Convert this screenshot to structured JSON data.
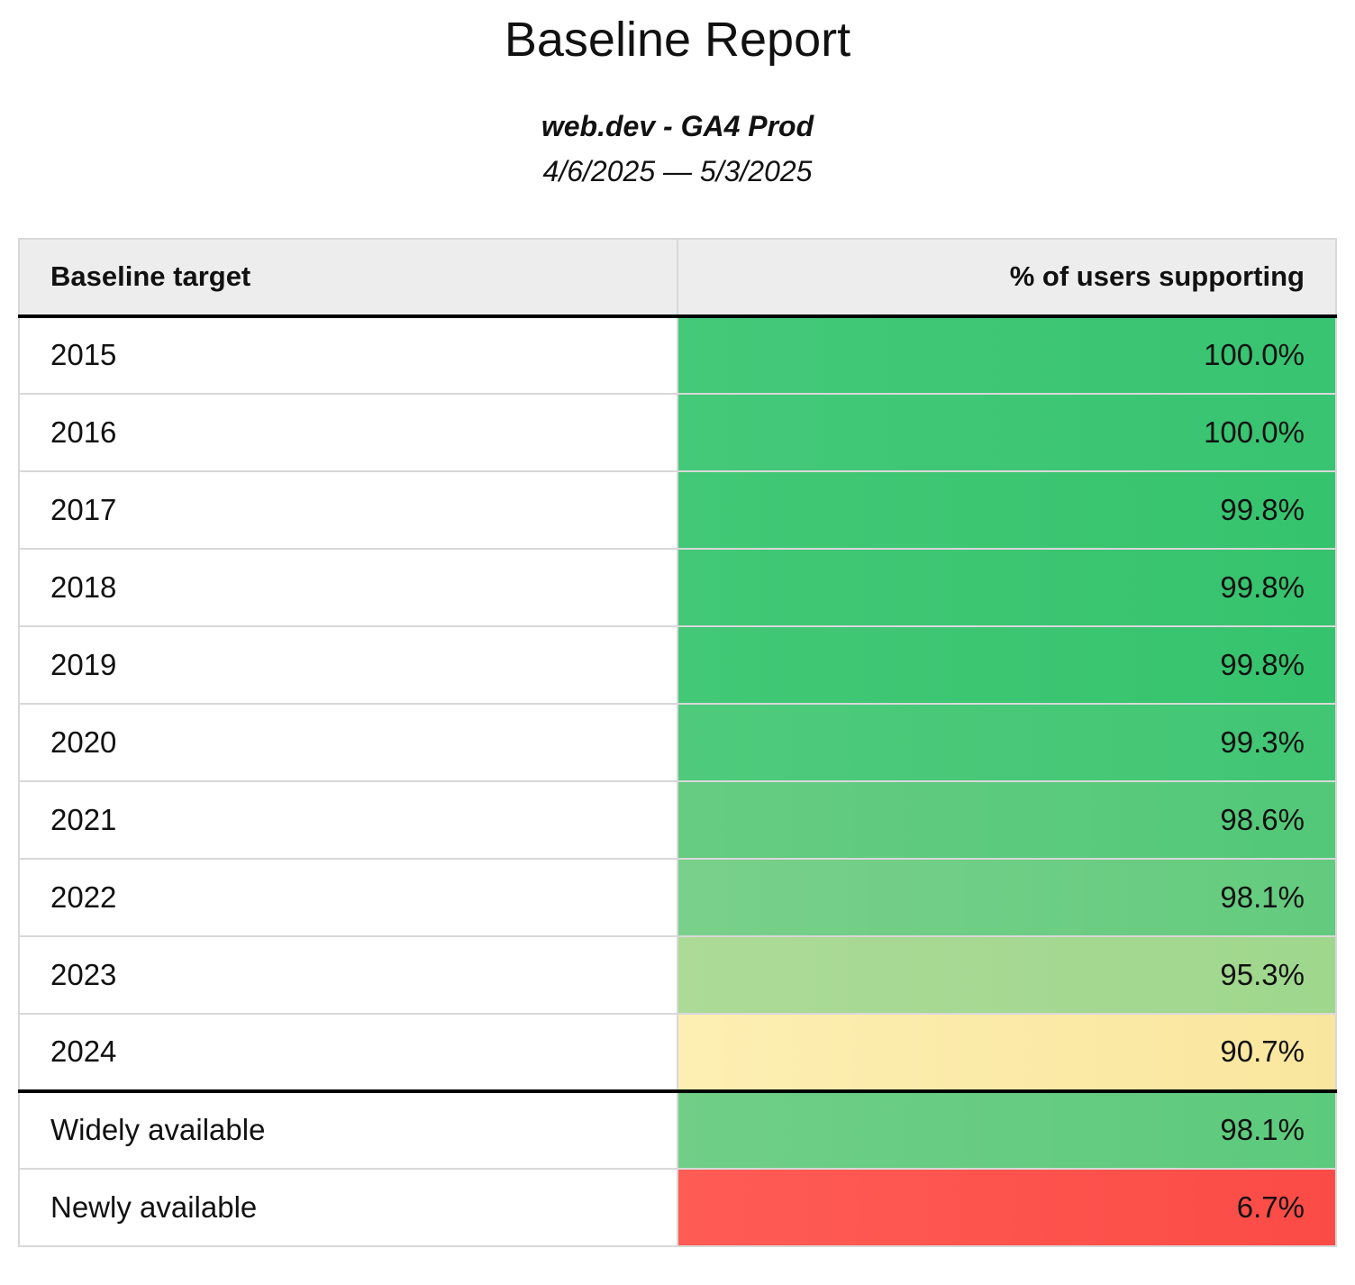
{
  "report": {
    "title": "Baseline Report",
    "subtitle": "web.dev - GA4 Prod",
    "date_range": "4/6/2025 — 5/3/2025"
  },
  "table": {
    "columns": [
      {
        "label": "Baseline target"
      },
      {
        "label": "% of users supporting"
      }
    ],
    "rows": [
      {
        "label": "2015",
        "value": "100.0%",
        "cell_color_left": "#44c979",
        "cell_color": "#38c471",
        "thick_border_below": false
      },
      {
        "label": "2016",
        "value": "100.0%",
        "cell_color_left": "#44c979",
        "cell_color": "#38c471",
        "thick_border_below": false
      },
      {
        "label": "2017",
        "value": "99.8%",
        "cell_color_left": "#42c876",
        "cell_color": "#36c36e",
        "thick_border_below": false
      },
      {
        "label": "2018",
        "value": "99.8%",
        "cell_color_left": "#42c876",
        "cell_color": "#36c36e",
        "thick_border_below": false
      },
      {
        "label": "2019",
        "value": "99.8%",
        "cell_color_left": "#42c876",
        "cell_color": "#36c36e",
        "thick_border_below": false
      },
      {
        "label": "2020",
        "value": "99.3%",
        "cell_color_left": "#4fca7c",
        "cell_color": "#41c674",
        "thick_border_below": false
      },
      {
        "label": "2021",
        "value": "98.6%",
        "cell_color_left": "#66cc82",
        "cell_color": "#52c878",
        "thick_border_below": false
      },
      {
        "label": "2022",
        "value": "98.1%",
        "cell_color_left": "#79d08b",
        "cell_color": "#63cb7e",
        "thick_border_below": false
      },
      {
        "label": "2023",
        "value": "95.3%",
        "cell_color_left": "#acda97",
        "cell_color": "#9fd78d",
        "thick_border_below": false
      },
      {
        "label": "2024",
        "value": "90.7%",
        "cell_color_left": "#fdefb2",
        "cell_color": "#f9e69e",
        "thick_border_below": true
      },
      {
        "label": "Widely available",
        "value": "98.1%",
        "cell_color_left": "#70ce87",
        "cell_color": "#5cca7c",
        "thick_border_below": false
      },
      {
        "label": "Newly available",
        "value": "6.7%",
        "cell_color_left": "#ff5c55",
        "cell_color": "#fb4b46",
        "thick_border_below": false
      }
    ]
  },
  "colors": {
    "header_background": "#ededed",
    "grid_border": "#d8d8d8",
    "section_divider": "#000000",
    "text": "#111111"
  },
  "chart_data": {
    "type": "table",
    "title": "Baseline Report",
    "subtitle": "web.dev - GA4 Prod",
    "date_range": "4/6/2025 — 5/3/2025",
    "categories": [
      "2015",
      "2016",
      "2017",
      "2018",
      "2019",
      "2020",
      "2021",
      "2022",
      "2023",
      "2024",
      "Widely available",
      "Newly available"
    ],
    "values": [
      100.0,
      100.0,
      99.8,
      99.8,
      99.8,
      99.3,
      98.6,
      98.1,
      95.3,
      90.7,
      98.1,
      6.7
    ],
    "value_label": "% of users supporting"
  }
}
